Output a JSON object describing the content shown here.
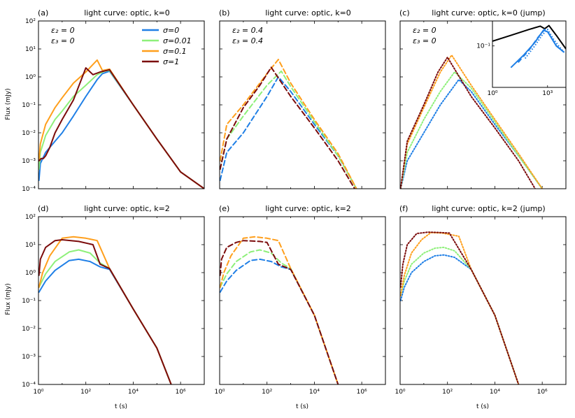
{
  "figure": {
    "ylabel": "Flux (mJy)",
    "xlabel": "t (s)"
  },
  "legend": [
    {
      "label": "σ=0",
      "color": "#1f7fe6"
    },
    {
      "label": "σ=0.01",
      "color": "#8ef07a"
    },
    {
      "label": "σ=0.1",
      "color": "#ff9f1c"
    },
    {
      "label": "σ=1",
      "color": "#7b0b0b"
    }
  ],
  "chart_data": [
    {
      "id": "a",
      "tag": "(a)",
      "title": "light curve: optic, k=0",
      "type": "line",
      "linestyle": "solid",
      "annotations": [
        "ε₂ = 0",
        "ε₃ = 0"
      ],
      "xlim": [
        1,
        10000000
      ],
      "ylim": [
        0.0001,
        100
      ],
      "xscale": "log",
      "yscale": "log",
      "xticks": [
        "10⁰",
        "10²",
        "10⁴",
        "10⁶"
      ],
      "yticks": [
        "10⁻⁴",
        "10⁻³",
        "10⁻²",
        "10⁻¹",
        "10⁰",
        "10¹",
        "10²"
      ],
      "series": [
        {
          "name": "σ=0",
          "color": "#1f7fe6",
          "x": [
            1.05,
            1.2,
            2,
            5,
            10,
            30,
            100,
            300,
            500,
            1000,
            10000,
            100000,
            1000000,
            10000000
          ],
          "y": [
            0.0002,
            0.0008,
            0.002,
            0.005,
            0.01,
            0.04,
            0.2,
            0.8,
            1.3,
            1.6,
            0.1,
            0.006,
            0.0004,
            0.0001
          ]
        },
        {
          "name": "σ=0.01",
          "color": "#8ef07a",
          "x": [
            1.05,
            1.2,
            2,
            5,
            10,
            30,
            100,
            300,
            600,
            1000,
            10000,
            100000,
            1000000,
            10000000
          ],
          "y": [
            0.0005,
            0.002,
            0.008,
            0.03,
            0.06,
            0.2,
            0.5,
            1.2,
            1.6,
            1.7,
            0.1,
            0.006,
            0.0004,
            0.0001
          ]
        },
        {
          "name": "σ=0.1",
          "color": "#ff9f1c",
          "x": [
            1.05,
            1.2,
            2,
            5,
            10,
            30,
            100,
            300,
            500,
            1000,
            10000,
            100000,
            1000000,
            10000000
          ],
          "y": [
            0.001,
            0.004,
            0.02,
            0.08,
            0.18,
            0.6,
            1.5,
            4,
            1.7,
            1.9,
            0.1,
            0.006,
            0.0004,
            0.0001
          ]
        },
        {
          "name": "σ=1",
          "color": "#7b0b0b",
          "x": [
            1.05,
            1.3,
            1.6,
            2,
            3,
            5,
            10,
            30,
            100,
            200,
            400,
            1000,
            10000,
            100000,
            1000000,
            10000000
          ],
          "y": [
            0.001,
            0.0012,
            0.0012,
            0.0015,
            0.003,
            0.01,
            0.03,
            0.15,
            2.1,
            1.2,
            1.5,
            1.8,
            0.1,
            0.006,
            0.0004,
            0.0001
          ]
        }
      ]
    },
    {
      "id": "b",
      "tag": "(b)",
      "title": "light curve: optic, k=0",
      "type": "line",
      "linestyle": "dashed",
      "annotations": [
        "ε₂ = 0.4",
        "ε₃ = 0.4"
      ],
      "xlim": [
        1,
        10000000
      ],
      "ylim": [
        0.0001,
        100
      ],
      "xscale": "log",
      "yscale": "log",
      "xticks": [
        "10⁰",
        "10²",
        "10⁴",
        "10⁶"
      ],
      "yticks": [],
      "series": [
        {
          "name": "σ=0",
          "color": "#1f7fe6",
          "x": [
            1.05,
            2,
            10,
            100,
            300,
            1000,
            10000,
            100000,
            600000
          ],
          "y": [
            0.0002,
            0.002,
            0.01,
            0.2,
            1.0,
            0.3,
            0.02,
            0.0015,
            0.0001
          ]
        },
        {
          "name": "σ=0.01",
          "color": "#8ef07a",
          "x": [
            1.05,
            2,
            10,
            100,
            400,
            1000,
            10000,
            100000,
            600000
          ],
          "y": [
            0.0005,
            0.006,
            0.04,
            0.5,
            1.6,
            0.45,
            0.025,
            0.0015,
            0.0001
          ]
        },
        {
          "name": "σ=0.1",
          "color": "#ff9f1c",
          "x": [
            1.05,
            2,
            10,
            100,
            300,
            1000,
            10000,
            100000,
            600000
          ],
          "y": [
            0.001,
            0.02,
            0.1,
            1.3,
            4.2,
            0.6,
            0.03,
            0.0018,
            0.0001
          ]
        },
        {
          "name": "σ=1",
          "color": "#7b0b0b",
          "x": [
            1.05,
            2,
            10,
            50,
            150,
            1000,
            10000,
            100000,
            500000
          ],
          "y": [
            0.0005,
            0.006,
            0.08,
            0.5,
            2.2,
            0.2,
            0.015,
            0.001,
            0.0001
          ]
        }
      ]
    },
    {
      "id": "c",
      "tag": "(c)",
      "title": "light curve: optic, k=0 (jump)",
      "type": "line",
      "linestyle": "dotted",
      "annotations": [
        "ε₂ = 0",
        "ε₃ = 0"
      ],
      "xlim": [
        1,
        10000000
      ],
      "ylim": [
        0.0001,
        100
      ],
      "xscale": "log",
      "yscale": "log",
      "xticks": [
        "10⁰",
        "10²",
        "10⁴",
        "10⁶"
      ],
      "yticks": [],
      "series": [
        {
          "name": "σ=0",
          "color": "#1f7fe6",
          "x": [
            1.05,
            2,
            10,
            50,
            300,
            1000,
            10000,
            100000,
            1000000
          ],
          "y": [
            0.0001,
            0.001,
            0.01,
            0.1,
            0.8,
            0.3,
            0.02,
            0.0015,
            0.0001
          ]
        },
        {
          "name": "σ=0.01",
          "color": "#8ef07a",
          "x": [
            1.05,
            2,
            10,
            50,
            200,
            1000,
            10000,
            100000,
            1000000
          ],
          "y": [
            0.0001,
            0.002,
            0.03,
            0.3,
            1.5,
            0.4,
            0.025,
            0.0015,
            0.0001
          ]
        },
        {
          "name": "σ=0.1",
          "color": "#ff9f1c",
          "x": [
            1.05,
            2,
            10,
            50,
            150,
            1000,
            10000,
            100000,
            1000000
          ],
          "y": [
            0.0001,
            0.004,
            0.08,
            1.5,
            6.0,
            0.5,
            0.03,
            0.0018,
            0.0001
          ]
        },
        {
          "name": "σ=1",
          "color": "#7b0b0b",
          "x": [
            1.05,
            2,
            10,
            40,
            100,
            1000,
            10000,
            100000,
            500000
          ],
          "y": [
            0.0001,
            0.005,
            0.1,
            1.5,
            5.0,
            0.2,
            0.015,
            0.001,
            0.0001
          ]
        }
      ],
      "inset": {
        "xlim": [
          1,
          10000
        ],
        "ylim": [
          0.01,
          0.4
        ],
        "xticks": [
          "10⁰",
          "10³"
        ],
        "ytick": "10⁻¹",
        "series": [
          {
            "name": "black",
            "color": "#000000",
            "linestyle": "solid",
            "x": [
              1,
              10,
              100,
              400,
              700,
              1200,
              3000,
              10000
            ],
            "y": [
              0.13,
              0.18,
              0.25,
              0.3,
              0.26,
              0.31,
              0.18,
              0.085
            ]
          },
          {
            "name": "σ=0 solid",
            "color": "#1f7fe6",
            "linestyle": "solid",
            "x": [
              10,
              50,
              200,
              600,
              1000,
              3000,
              8000
            ],
            "y": [
              0.03,
              0.06,
              0.12,
              0.24,
              0.22,
              0.1,
              0.07
            ]
          },
          {
            "name": "σ=0 dashed",
            "color": "#1f7fe6",
            "linestyle": "dashed",
            "x": [
              25,
              100,
              300,
              700,
              1100,
              3000,
              8000
            ],
            "y": [
              0.04,
              0.08,
              0.16,
              0.25,
              0.21,
              0.1,
              0.07
            ]
          },
          {
            "name": "σ=0 dotted",
            "color": "#1f7fe6",
            "linestyle": "dotted",
            "x": [
              60,
              200,
              500,
              1000,
              2000,
              4000,
              8000
            ],
            "y": [
              0.05,
              0.1,
              0.18,
              0.25,
              0.15,
              0.1,
              0.07
            ]
          }
        ]
      }
    },
    {
      "id": "d",
      "tag": "(d)",
      "title": "light curve: optic, k=2",
      "type": "line",
      "linestyle": "solid",
      "annotations": [],
      "xlim": [
        1,
        10000000
      ],
      "ylim": [
        0.0001,
        100
      ],
      "xscale": "log",
      "yscale": "log",
      "xticks": [
        "10⁰",
        "10²",
        "10⁴",
        "10⁶"
      ],
      "yticks": [
        "10⁻⁴",
        "10⁻³",
        "10⁻²",
        "10⁻¹",
        "10⁰",
        "10¹",
        "10²"
      ],
      "series": [
        {
          "name": "σ=0",
          "color": "#1f7fe6",
          "x": [
            1.05,
            2,
            5,
            20,
            50,
            150,
            400,
            1000,
            10000,
            100000,
            400000
          ],
          "y": [
            0.2,
            0.5,
            1.2,
            2.7,
            3.0,
            2.5,
            1.6,
            1.3,
            0.05,
            0.002,
            0.0001
          ]
        },
        {
          "name": "σ=0.01",
          "color": "#8ef07a",
          "x": [
            1.05,
            2,
            5,
            20,
            50,
            150,
            400,
            1000,
            10000,
            100000,
            400000
          ],
          "y": [
            0.3,
            0.9,
            2.5,
            5.5,
            6.5,
            5.0,
            2.2,
            1.4,
            0.05,
            0.002,
            0.0001
          ]
        },
        {
          "name": "σ=0.1",
          "color": "#ff9f1c",
          "x": [
            1.05,
            1.5,
            3,
            10,
            30,
            100,
            300,
            1000,
            10000,
            100000,
            400000
          ],
          "y": [
            0.3,
            1.0,
            4.0,
            17,
            19,
            17,
            14,
            1.4,
            0.05,
            0.002,
            0.0001
          ]
        },
        {
          "name": "σ=1",
          "color": "#7b0b0b",
          "x": [
            1.05,
            1.2,
            2,
            5,
            10,
            50,
            200,
            400,
            1000,
            10000,
            100000,
            400000
          ],
          "y": [
            0.8,
            3,
            8,
            14,
            15,
            13,
            10,
            2.0,
            1.4,
            0.05,
            0.002,
            0.0001
          ]
        }
      ]
    },
    {
      "id": "e",
      "tag": "(e)",
      "title": "light curve: optic, k=2",
      "type": "line",
      "linestyle": "dashed",
      "annotations": [],
      "xlim": [
        1,
        10000000
      ],
      "ylim": [
        0.0001,
        100
      ],
      "xscale": "log",
      "yscale": "log",
      "xticks": [
        "10⁰",
        "10²",
        "10⁴",
        "10⁶"
      ],
      "yticks": [],
      "series": [
        {
          "name": "σ=0",
          "color": "#1f7fe6",
          "x": [
            1.05,
            2,
            5,
            20,
            50,
            150,
            400,
            1000,
            10000,
            100000
          ],
          "y": [
            0.2,
            0.5,
            1.2,
            2.7,
            3.0,
            2.5,
            1.6,
            1.3,
            0.03,
            0.0001
          ]
        },
        {
          "name": "σ=0.01",
          "color": "#8ef07a",
          "x": [
            1.05,
            2,
            5,
            20,
            50,
            150,
            400,
            1000,
            10000,
            100000
          ],
          "y": [
            0.3,
            0.9,
            2.5,
            5.5,
            6.5,
            5.0,
            2.2,
            1.4,
            0.03,
            0.0001
          ]
        },
        {
          "name": "σ=0.1",
          "color": "#ff9f1c",
          "x": [
            1.05,
            1.5,
            3,
            10,
            30,
            100,
            300,
            1000,
            10000,
            100000
          ],
          "y": [
            0.3,
            1.0,
            4.0,
            17,
            19,
            17,
            14,
            1.4,
            0.03,
            0.0001
          ]
        },
        {
          "name": "σ=1",
          "color": "#7b0b0b",
          "x": [
            1.05,
            1.2,
            2,
            5,
            10,
            50,
            100,
            300,
            1000,
            10000,
            100000
          ],
          "y": [
            0.8,
            3,
            8,
            12,
            14,
            13,
            12,
            2.0,
            1.3,
            0.03,
            0.0001
          ]
        }
      ]
    },
    {
      "id": "f",
      "tag": "(f)",
      "title": "light curve: optic, k=2 (jump)",
      "type": "line",
      "linestyle": "dotted",
      "annotations": [],
      "xlim": [
        1,
        10000000
      ],
      "ylim": [
        0.0001,
        100
      ],
      "xscale": "log",
      "yscale": "log",
      "xticks": [
        "10⁰",
        "10²",
        "10⁴",
        "10⁶"
      ],
      "yticks": [],
      "series": [
        {
          "name": "σ=0",
          "color": "#1f7fe6",
          "x": [
            1.05,
            1.5,
            3,
            10,
            30,
            70,
            200,
            1000,
            10000,
            100000
          ],
          "y": [
            0.1,
            0.3,
            1.0,
            2.5,
            4.0,
            4.3,
            3.5,
            1.3,
            0.03,
            0.0001
          ]
        },
        {
          "name": "σ=0.01",
          "color": "#8ef07a",
          "x": [
            1.05,
            1.5,
            3,
            10,
            30,
            70,
            200,
            1000,
            10000,
            100000
          ],
          "y": [
            0.15,
            0.5,
            2.0,
            5.0,
            7.5,
            8.0,
            6.0,
            1.3,
            0.03,
            0.0001
          ]
        },
        {
          "name": "σ=0.1",
          "color": "#ff9f1c",
          "x": [
            1.05,
            1.5,
            3,
            8,
            20,
            60,
            300,
            1000,
            10000,
            100000
          ],
          "y": [
            0.15,
            0.8,
            5.0,
            15,
            27,
            26,
            20,
            1.3,
            0.03,
            0.0001
          ]
        },
        {
          "name": "σ=1",
          "color": "#7b0b0b",
          "x": [
            1.05,
            1.3,
            2,
            5,
            15,
            50,
            120,
            1000,
            10000,
            100000
          ],
          "y": [
            0.3,
            2.0,
            10,
            25,
            28,
            27,
            26,
            1.3,
            0.03,
            0.0001
          ]
        }
      ]
    }
  ]
}
